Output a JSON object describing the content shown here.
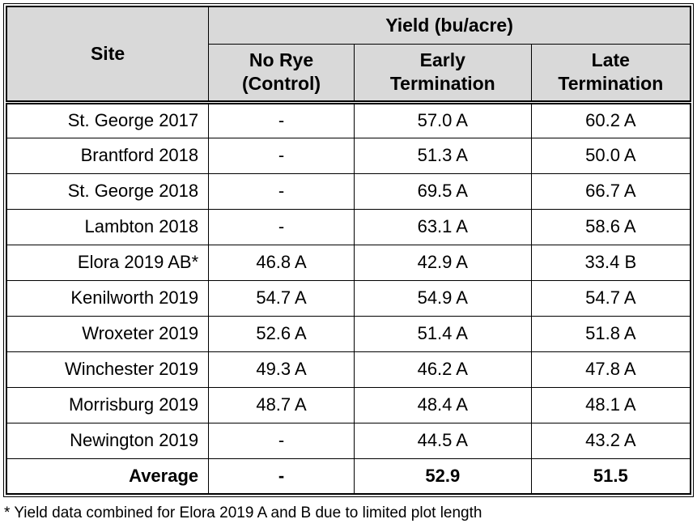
{
  "table": {
    "header": {
      "site": "Site",
      "group": "Yield (bu/acre)",
      "subcolumns": [
        "No Rye\n(Control)",
        "Early\nTermination",
        "Late\nTermination"
      ]
    },
    "rows": [
      {
        "site": "St. George 2017",
        "values": [
          "-",
          "57.0 A",
          "60.2 A"
        ],
        "bold": false
      },
      {
        "site": "Brantford 2018",
        "values": [
          "-",
          "51.3 A",
          "50.0 A"
        ],
        "bold": false
      },
      {
        "site": "St. George 2018",
        "values": [
          "-",
          "69.5 A",
          "66.7 A"
        ],
        "bold": false
      },
      {
        "site": "Lambton 2018",
        "values": [
          "-",
          "63.1 A",
          "58.6 A"
        ],
        "bold": false
      },
      {
        "site": "Elora 2019 AB*",
        "values": [
          "46.8 A",
          "42.9 A",
          "33.4 B"
        ],
        "bold": false
      },
      {
        "site": "Kenilworth 2019",
        "values": [
          "54.7 A",
          "54.9 A",
          "54.7 A"
        ],
        "bold": false
      },
      {
        "site": "Wroxeter 2019",
        "values": [
          "52.6 A",
          "51.4 A",
          "51.8 A"
        ],
        "bold": false
      },
      {
        "site": "Winchester 2019",
        "values": [
          "49.3 A",
          "46.2 A",
          "47.8 A"
        ],
        "bold": false
      },
      {
        "site": "Morrisburg 2019",
        "values": [
          "48.7 A",
          "48.4 A",
          "48.1 A"
        ],
        "bold": false
      },
      {
        "site": "Newington 2019",
        "values": [
          "-",
          "44.5 A",
          "43.2 A"
        ],
        "bold": false
      },
      {
        "site": "Average",
        "values": [
          "-",
          "52.9",
          "51.5"
        ],
        "bold": true
      }
    ]
  },
  "footnote": "* Yield data combined for Elora 2019 A and B due to limited plot length",
  "colors": {
    "header_bg": "#d9d9d9",
    "border": "#000000",
    "text": "#000000"
  },
  "chart_data": {
    "type": "table",
    "title": "Yield (bu/acre)",
    "columns": [
      "Site",
      "No Rye (Control)",
      "Early Termination",
      "Late Termination"
    ],
    "rows": [
      [
        "St. George 2017",
        "-",
        "57.0 A",
        "60.2 A"
      ],
      [
        "Brantford 2018",
        "-",
        "51.3 A",
        "50.0 A"
      ],
      [
        "St. George 2018",
        "-",
        "69.5 A",
        "66.7 A"
      ],
      [
        "Lambton 2018",
        "-",
        "63.1 A",
        "58.6 A"
      ],
      [
        "Elora 2019 AB*",
        "46.8 A",
        "42.9 A",
        "33.4 B"
      ],
      [
        "Kenilworth 2019",
        "54.7 A",
        "54.9 A",
        "54.7 A"
      ],
      [
        "Wroxeter 2019",
        "52.6 A",
        "51.4 A",
        "51.8 A"
      ],
      [
        "Winchester 2019",
        "49.3 A",
        "46.2 A",
        "47.8 A"
      ],
      [
        "Morrisburg 2019",
        "48.7 A",
        "48.4 A",
        "48.1 A"
      ],
      [
        "Newington 2019",
        "-",
        "44.5 A",
        "43.2 A"
      ],
      [
        "Average",
        "-",
        "52.9",
        "51.5"
      ]
    ],
    "footnote": "* Yield data combined for Elora 2019 A and B due to limited plot length"
  }
}
